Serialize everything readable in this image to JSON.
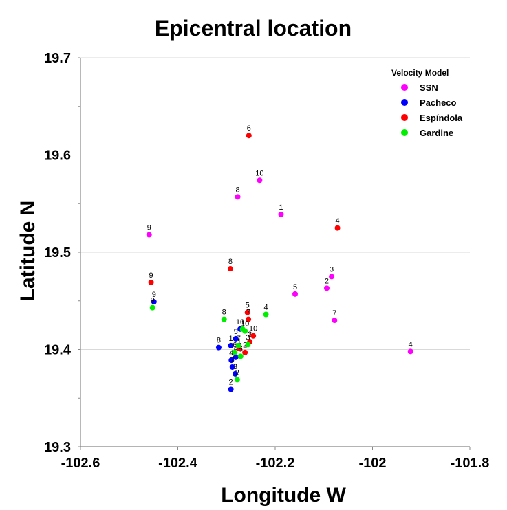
{
  "chart_data": {
    "type": "scatter",
    "title": "Epicentral location",
    "xlabel": "Longitude W",
    "ylabel": "Latitude N",
    "xlim": [
      -102.6,
      -101.8
    ],
    "ylim": [
      19.3,
      19.7
    ],
    "x_ticks": [
      -102.6,
      -102.4,
      -102.2,
      -102,
      -101.8
    ],
    "x_tick_labels": [
      "-102.6",
      "-102.4",
      "-102.2",
      "-102",
      "-101.8"
    ],
    "y_ticks": [
      19.3,
      19.4,
      19.5,
      19.6,
      19.7
    ],
    "y_tick_labels": [
      "19.3",
      "19.4",
      "19.5",
      "19.6",
      "19.7"
    ],
    "y_minor_step": 0.05,
    "grid": "horizontal",
    "legend": {
      "title": "Velocity Model",
      "position": "top-right"
    },
    "series": [
      {
        "name": "SSN",
        "color": "#ff00ff",
        "points": [
          {
            "x": -102.188,
            "y": 19.539,
            "label": "1"
          },
          {
            "x": -102.094,
            "y": 19.463,
            "label": "2"
          },
          {
            "x": -102.084,
            "y": 19.475,
            "label": "3"
          },
          {
            "x": -101.922,
            "y": 19.398,
            "label": "4"
          },
          {
            "x": -102.159,
            "y": 19.457,
            "label": "5"
          },
          {
            "x": -102.078,
            "y": 19.43,
            "label": "7"
          },
          {
            "x": -102.277,
            "y": 19.557,
            "label": "8"
          },
          {
            "x": -102.459,
            "y": 19.518,
            "label": "9"
          },
          {
            "x": -102.232,
            "y": 19.574,
            "label": "10"
          }
        ]
      },
      {
        "name": "Pacheco",
        "color": "#0000ff",
        "points": [
          {
            "x": -102.291,
            "y": 19.404,
            "label": "1"
          },
          {
            "x": -102.291,
            "y": 19.359,
            "label": "2"
          },
          {
            "x": -102.282,
            "y": 19.375,
            "label": "3"
          },
          {
            "x": -102.29,
            "y": 19.389,
            "label": "4"
          },
          {
            "x": -102.281,
            "y": 19.411,
            "label": "5"
          },
          {
            "x": -102.281,
            "y": 19.392,
            "label": "6"
          },
          {
            "x": -102.288,
            "y": 19.382,
            "label": "7"
          },
          {
            "x": -102.316,
            "y": 19.402,
            "label": "8"
          },
          {
            "x": -102.449,
            "y": 19.449,
            "label": "9"
          },
          {
            "x": -102.272,
            "y": 19.421,
            "label": "10"
          }
        ]
      },
      {
        "name": "Espíndola",
        "color": "#ff0000",
        "points": [
          {
            "x": -102.274,
            "y": 19.401,
            "label": "1"
          },
          {
            "x": -102.262,
            "y": 19.397,
            "label": "2"
          },
          {
            "x": -102.252,
            "y": 19.408,
            "label": "3"
          },
          {
            "x": -102.072,
            "y": 19.525,
            "label": "4"
          },
          {
            "x": -102.257,
            "y": 19.438,
            "label": "5"
          },
          {
            "x": -102.254,
            "y": 19.62,
            "label": "6"
          },
          {
            "x": -102.255,
            "y": 19.431,
            "label": "7"
          },
          {
            "x": -102.292,
            "y": 19.483,
            "label": "8"
          },
          {
            "x": -102.455,
            "y": 19.469,
            "label": "9"
          },
          {
            "x": -102.245,
            "y": 19.414,
            "label": "10"
          }
        ]
      },
      {
        "name": "Gardine",
        "color": "#00ee00",
        "points": [
          {
            "x": -102.267,
            "y": 19.421,
            "label": "1"
          },
          {
            "x": -102.278,
            "y": 19.369,
            "label": "2"
          },
          {
            "x": -102.256,
            "y": 19.405,
            "label": "3"
          },
          {
            "x": -102.219,
            "y": 19.436,
            "label": "4"
          },
          {
            "x": -102.271,
            "y": 19.393,
            "label": "5"
          },
          {
            "x": -102.283,
            "y": 19.397,
            "label": "6"
          },
          {
            "x": -102.275,
            "y": 19.404,
            "label": "7"
          },
          {
            "x": -102.305,
            "y": 19.431,
            "label": "8"
          },
          {
            "x": -102.452,
            "y": 19.443,
            "label": "9"
          },
          {
            "x": -102.262,
            "y": 19.419,
            "label": "10"
          }
        ]
      }
    ]
  }
}
